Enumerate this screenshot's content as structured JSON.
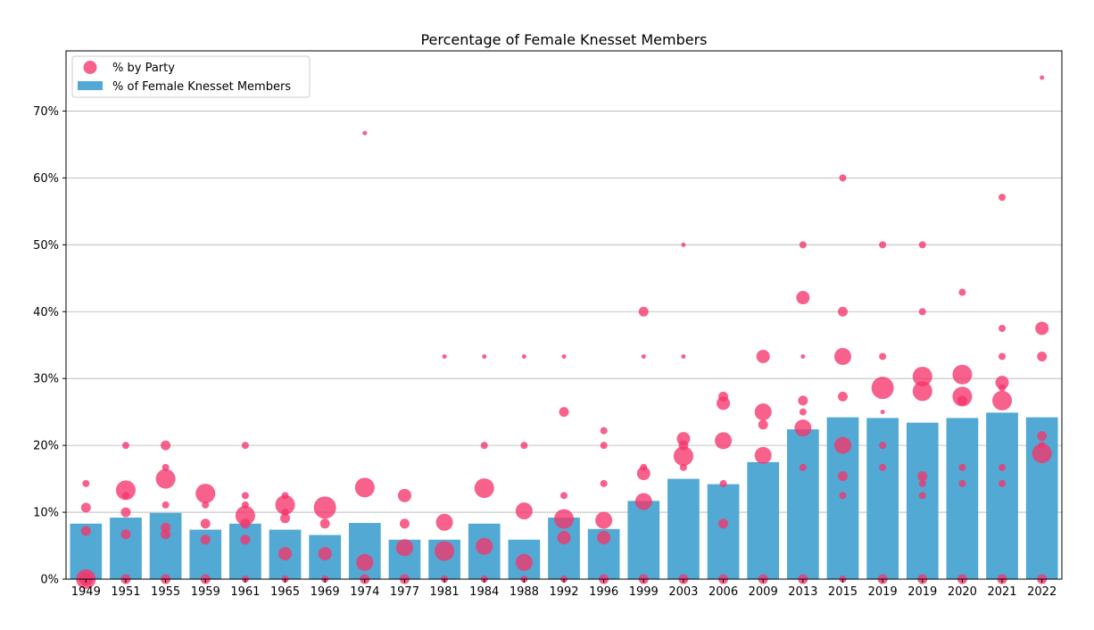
{
  "colors": {
    "bar": "#51a9d4",
    "bubble": "#f5346c",
    "grid": "#b0b0b0",
    "axis": "#000000"
  },
  "chart_data": {
    "type": "bar+bubble",
    "title": "Percentage of Female Knesset Members",
    "xlabel": "",
    "ylabel": "",
    "ylim": [
      0,
      79
    ],
    "yticks": [
      0,
      10,
      20,
      30,
      40,
      50,
      60,
      70
    ],
    "ytick_labels": [
      "0%",
      "10%",
      "20%",
      "30%",
      "40%",
      "50%",
      "60%",
      "70%"
    ],
    "grid": "y-major",
    "legend_position": "top-left",
    "legend": [
      {
        "label": "% by Party",
        "kind": "bubble"
      },
      {
        "label": "% of Female Knesset Members",
        "kind": "bar"
      }
    ],
    "categories": [
      "1949",
      "1951",
      "1955",
      "1959",
      "1961",
      "1965",
      "1969",
      "1974",
      "1977",
      "1981",
      "1984",
      "1988",
      "1992",
      "1996",
      "1999",
      "2003",
      "2006",
      "2009",
      "2013",
      "2015",
      "2019",
      "2019",
      "2020",
      "2021",
      "2022"
    ],
    "series": [
      {
        "name": "% of Female Knesset Members",
        "type": "bar",
        "values": [
          8.3,
          9.2,
          9.9,
          7.4,
          8.3,
          7.4,
          6.6,
          8.4,
          5.9,
          5.9,
          8.3,
          5.9,
          9.2,
          7.5,
          11.7,
          15.0,
          14.2,
          17.5,
          22.4,
          24.2,
          24.1,
          23.4,
          24.1,
          24.9,
          24.2
        ]
      },
      {
        "name": "% by Party",
        "type": "bubble",
        "points": [
          [
            [
              0,
              13,
              5
            ],
            [
              14.3,
              1
            ],
            [
              10.7,
              2
            ],
            [
              7.2,
              2
            ],
            [
              0,
              3
            ]
          ],
          [
            [
              13.3,
              5
            ],
            [
              20,
              1
            ],
            [
              12.5,
              1
            ],
            [
              10,
              2
            ],
            [
              6.7,
              2
            ],
            [
              0,
              2
            ]
          ],
          [
            [
              15,
              5
            ],
            [
              20,
              2
            ],
            [
              16.7,
              1
            ],
            [
              11.1,
              1
            ],
            [
              7.7,
              2
            ],
            [
              6.7,
              2
            ],
            [
              0,
              2
            ]
          ],
          [
            [
              12.8,
              5
            ],
            [
              11.1,
              1
            ],
            [
              8.3,
              2
            ],
            [
              5.9,
              2
            ],
            [
              0,
              2
            ]
          ],
          [
            [
              9.5,
              5
            ],
            [
              20,
              1
            ],
            [
              12.5,
              1
            ],
            [
              11.1,
              1
            ],
            [
              8.3,
              2
            ],
            [
              5.9,
              2
            ],
            [
              0,
              1
            ]
          ],
          [
            [
              11.1,
              5
            ],
            [
              12.5,
              1
            ],
            [
              10,
              1
            ],
            [
              9.1,
              2
            ],
            [
              3.8,
              3
            ],
            [
              0,
              1
            ]
          ],
          [
            [
              10.7,
              6
            ],
            [
              8.3,
              2
            ],
            [
              3.8,
              3
            ],
            [
              0,
              1
            ]
          ],
          [
            [
              13.7,
              5
            ],
            [
              66.7,
              0
            ],
            [
              2.5,
              4
            ],
            [
              0,
              2
            ]
          ],
          [
            [
              12.5,
              3
            ],
            [
              8.3,
              2
            ],
            [
              4.7,
              4
            ],
            [
              0,
              2
            ]
          ],
          [
            [
              8.5,
              4
            ],
            [
              33.3,
              0
            ],
            [
              4.2,
              5
            ],
            [
              0,
              1
            ]
          ],
          [
            [
              13.6,
              5
            ],
            [
              33.3,
              0
            ],
            [
              20,
              1
            ],
            [
              4.9,
              4
            ],
            [
              0,
              1
            ]
          ],
          [
            [
              10.2,
              4
            ],
            [
              33.3,
              0
            ],
            [
              20,
              1
            ],
            [
              2.5,
              4
            ],
            [
              0,
              1
            ]
          ],
          [
            [
              9,
              5
            ],
            [
              33.3,
              0
            ],
            [
              25,
              2
            ],
            [
              12.5,
              1
            ],
            [
              6.2,
              3
            ],
            [
              0,
              1
            ]
          ],
          [
            [
              8.8,
              4
            ],
            [
              22.2,
              1
            ],
            [
              20,
              1
            ],
            [
              14.3,
              1
            ],
            [
              6.2,
              3
            ],
            [
              0,
              2
            ]
          ],
          [
            [
              11.6,
              4
            ],
            [
              40,
              2
            ],
            [
              33.3,
              0
            ],
            [
              16.7,
              1
            ],
            [
              15.8,
              3
            ],
            [
              0,
              2
            ]
          ],
          [
            [
              18.4,
              5
            ],
            [
              50,
              0
            ],
            [
              33.3,
              0
            ],
            [
              21,
              3
            ],
            [
              20,
              2
            ],
            [
              16.7,
              1
            ],
            [
              0,
              2
            ]
          ],
          [
            [
              20.7,
              4
            ],
            [
              27.3,
              2
            ],
            [
              26.3,
              3
            ],
            [
              14.3,
              1
            ],
            [
              8.3,
              2
            ],
            [
              0,
              2
            ]
          ],
          [
            [
              18.5,
              4
            ],
            [
              33.3,
              3
            ],
            [
              25,
              4
            ],
            [
              23.1,
              2
            ],
            [
              0,
              2
            ]
          ],
          [
            [
              22.6,
              4
            ],
            [
              50,
              1
            ],
            [
              42.1,
              3
            ],
            [
              33.3,
              0
            ],
            [
              26.7,
              2
            ],
            [
              25,
              1
            ],
            [
              16.7,
              1
            ],
            [
              0,
              2
            ]
          ],
          [
            [
              20,
              4
            ],
            [
              60,
              1
            ],
            [
              40,
              2
            ],
            [
              33.3,
              4
            ],
            [
              27.3,
              2
            ],
            [
              15.4,
              2
            ],
            [
              12.5,
              1
            ],
            [
              0,
              1
            ]
          ],
          [
            [
              28.6,
              6
            ],
            [
              50,
              1
            ],
            [
              33.3,
              1
            ],
            [
              25,
              0
            ],
            [
              20,
              1
            ],
            [
              16.7,
              1
            ],
            [
              0,
              2
            ]
          ],
          [
            [
              30.3,
              5
            ],
            [
              50,
              1
            ],
            [
              40,
              1
            ],
            [
              28.1,
              5
            ],
            [
              15.4,
              2
            ],
            [
              14.3,
              1
            ],
            [
              12.5,
              1
            ],
            [
              0,
              2
            ]
          ],
          [
            [
              30.6,
              5
            ],
            [
              42.9,
              1
            ],
            [
              27.3,
              5
            ],
            [
              26.7,
              2
            ],
            [
              16.7,
              1
            ],
            [
              14.3,
              1
            ],
            [
              0,
              2
            ]
          ],
          [
            [
              26.7,
              5
            ],
            [
              57.1,
              1
            ],
            [
              37.5,
              1
            ],
            [
              33.3,
              1
            ],
            [
              29.4,
              3
            ],
            [
              28.6,
              1
            ],
            [
              16.7,
              1
            ],
            [
              14.3,
              1
            ],
            [
              0,
              2
            ]
          ],
          [
            [
              18.8,
              5
            ],
            [
              75,
              0
            ],
            [
              37.5,
              3
            ],
            [
              33.3,
              2
            ],
            [
              21.4,
              2
            ],
            [
              20,
              1
            ],
            [
              0,
              2
            ]
          ]
        ]
      }
    ]
  }
}
